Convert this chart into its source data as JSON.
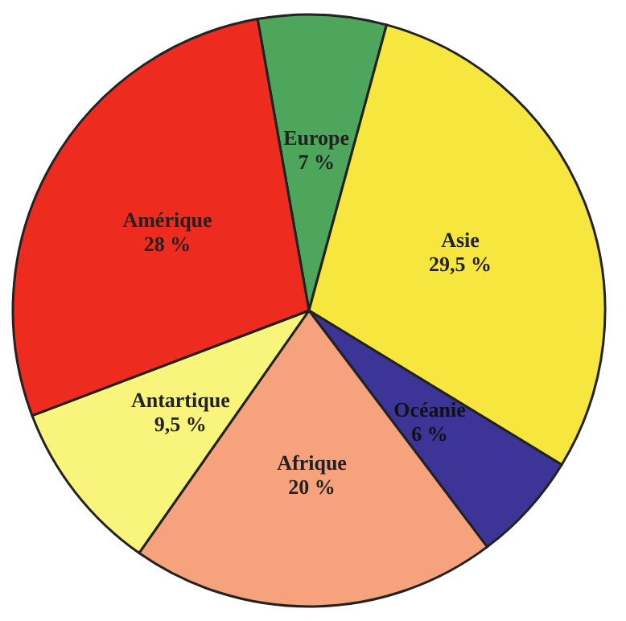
{
  "chart_data": {
    "type": "pie",
    "categories": [
      "Europe",
      "Asie",
      "Océanie",
      "Afrique",
      "Antartique",
      "Amérique"
    ],
    "values": [
      7,
      29.5,
      6,
      20,
      9.5,
      28
    ],
    "value_labels": [
      "7 %",
      "29,5 %",
      "6 %",
      "20 %",
      "9,5 %",
      "28 %"
    ],
    "colors": [
      "#4ea65c",
      "#f6e63e",
      "#3d3497",
      "#f6a27c",
      "#f9f47c",
      "#ee2b1f"
    ]
  }
}
